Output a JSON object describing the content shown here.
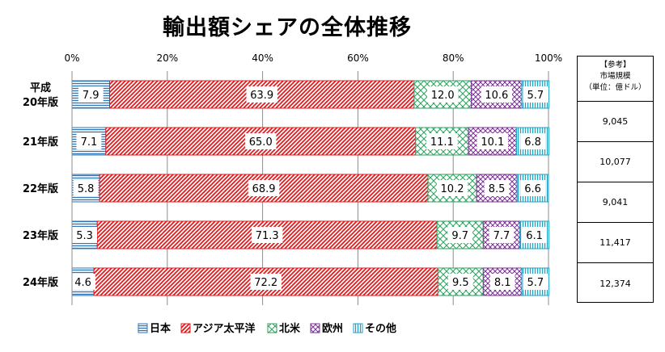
{
  "title": "輸出額シェアの全体推移",
  "chart_data": {
    "type": "bar",
    "orientation": "horizontal",
    "stacked": "100%",
    "categories": [
      "平成\n20年版",
      "21年版",
      "22年版",
      "23年版",
      "24年版"
    ],
    "series": [
      {
        "name": "日本",
        "values": [
          7.9,
          7.1,
          5.8,
          5.3,
          4.6
        ],
        "color": "#2e75b6",
        "pattern": "horizontal-stripes"
      },
      {
        "name": "アジア太平洋",
        "values": [
          63.9,
          65.0,
          68.9,
          71.3,
          72.2
        ],
        "color": "#e31a1c",
        "pattern": "diagonal-stripes"
      },
      {
        "name": "北米",
        "values": [
          12.0,
          11.1,
          10.2,
          9.7,
          9.5
        ],
        "color": "#2ca25f",
        "pattern": "crosshatch"
      },
      {
        "name": "欧州",
        "values": [
          10.6,
          10.1,
          8.5,
          7.7,
          8.1
        ],
        "color": "#7b3294",
        "pattern": "crosshatch-dense"
      },
      {
        "name": "その他",
        "values": [
          5.7,
          6.8,
          6.6,
          6.1,
          5.7
        ],
        "color": "#1fa2c4",
        "pattern": "vertical-stripes"
      }
    ],
    "x_ticks": [
      "0%",
      "20%",
      "40%",
      "60%",
      "80%",
      "100%"
    ],
    "xlim": [
      0,
      100
    ],
    "grid": true,
    "legend_position": "bottom"
  },
  "market_table": {
    "header": [
      "【参考】",
      "市場規模",
      "（単位：億ドル）"
    ],
    "values": [
      "9,045",
      "10,077",
      "9,041",
      "11,417",
      "12,374"
    ]
  }
}
